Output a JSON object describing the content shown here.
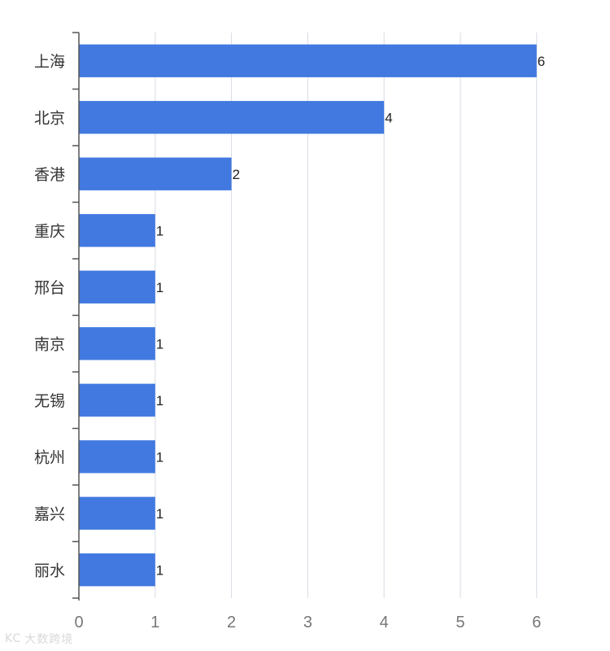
{
  "chart_data": {
    "type": "bar",
    "orientation": "horizontal",
    "categories": [
      "上海",
      "北京",
      "香港",
      "重庆",
      "邢台",
      "南京",
      "无锡",
      "杭州",
      "嘉兴",
      "丽水"
    ],
    "values": [
      6,
      4,
      2,
      1,
      1,
      1,
      1,
      1,
      1,
      1
    ],
    "data_labels": [
      "6",
      "4",
      "2",
      "1",
      "1",
      "1",
      "1",
      "1",
      "1",
      "1"
    ],
    "xlim": [
      0,
      6.3
    ],
    "x_ticks": [
      "0",
      "1",
      "2",
      "3",
      "4",
      "5",
      "6"
    ],
    "title": "",
    "xlabel": "",
    "ylabel": "",
    "grid": "vertical",
    "colors": {
      "bar": "#4179e0",
      "grid": "#d6dbe3",
      "axis": "#555555",
      "category_text": "#333333",
      "tick_text": "#777777",
      "label_text": "#222222"
    }
  },
  "watermark": {
    "logo_text": "KC",
    "text": "大数跨境"
  }
}
